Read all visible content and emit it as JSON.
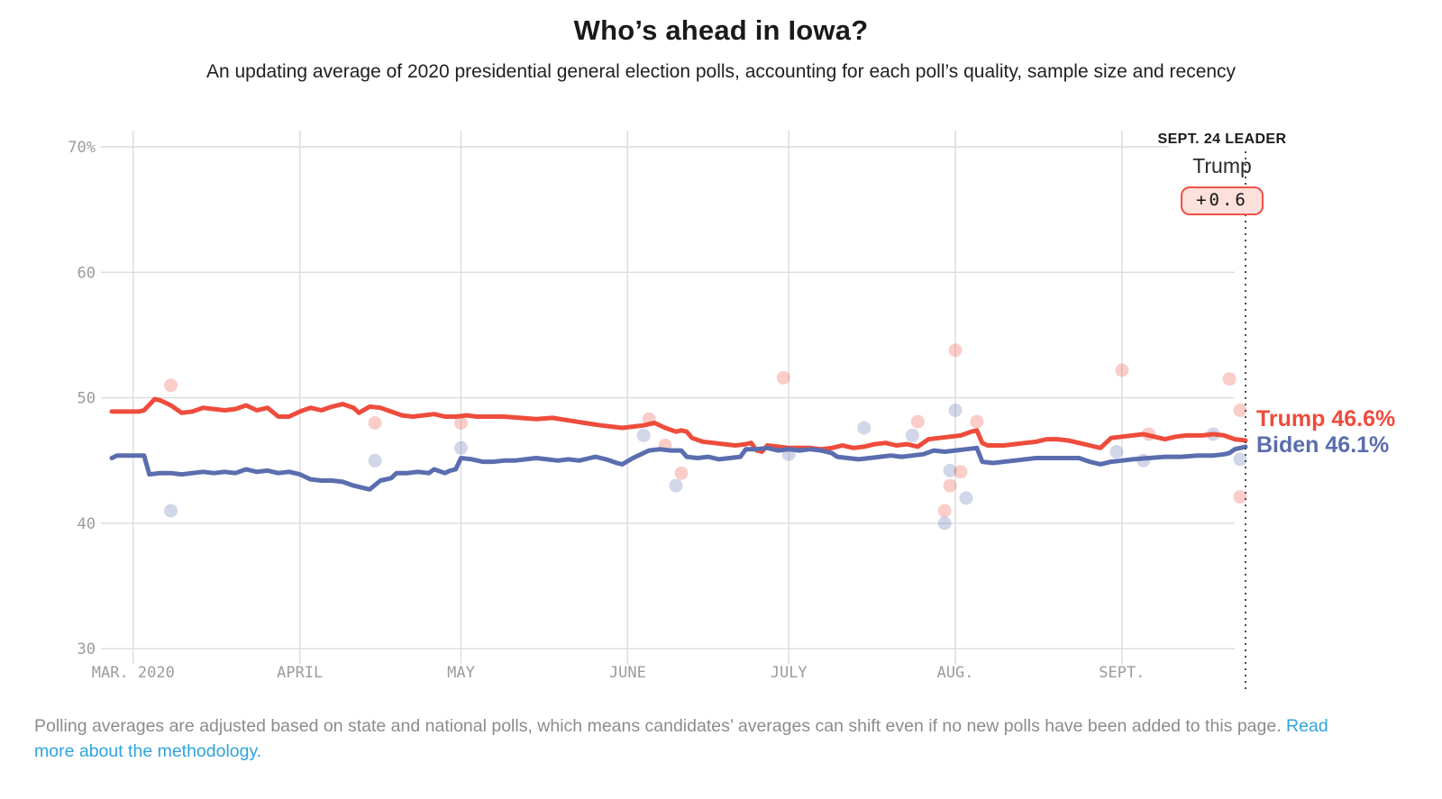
{
  "header": {
    "title": "Who’s ahead in Iowa?",
    "subtitle": "An updating average of 2020 presidential general election polls, accounting for each poll’s quality, sample size and recency"
  },
  "leader": {
    "heading": "SEPT. 24 LEADER",
    "name": "Trump",
    "margin": "+0.6"
  },
  "line_labels": {
    "trump": "Trump 46.6%",
    "biden": "Biden 46.1%"
  },
  "footer": {
    "text": "Polling averages are adjusted based on state and national polls, which means candidates’ averages can shift even if no new polls have been added to this page. ",
    "link": "Read more about the methodology."
  },
  "colors": {
    "trump": "#ee4c3c",
    "biden": "#5a6dae",
    "grid": "#dcdcdc",
    "axis_text": "#9b9b9b",
    "dotted_line": "#4a4a4a",
    "pill_bg": "#fbe0dc",
    "pill_border": "#ef5246",
    "link": "#2fa3dc",
    "footer_text": "#8c8c8c",
    "title_text": "#1a1a1a"
  },
  "chart_data": {
    "type": "line",
    "title": "Who’s ahead in Iowa?",
    "x_unit": "days since Feb 26, 2020",
    "x_range": [
      0,
      211
    ],
    "y_range": [
      28,
      71
    ],
    "grid": true,
    "legend_position": "end-of-line labels, right side",
    "end_marker_day": 211,
    "end_marker_date_label": "SEPT. 24",
    "y_ticks": [
      {
        "v": 70,
        "label": "70%"
      },
      {
        "v": 60,
        "label": "60"
      },
      {
        "v": 50,
        "label": "50"
      },
      {
        "v": 40,
        "label": "40"
      },
      {
        "v": 30,
        "label": "30"
      }
    ],
    "x_ticks": [
      {
        "d": 4,
        "label": "MAR. 2020"
      },
      {
        "d": 35,
        "label": "APRIL"
      },
      {
        "d": 65,
        "label": "MAY"
      },
      {
        "d": 96,
        "label": "JUNE"
      },
      {
        "d": 126,
        "label": "JULY"
      },
      {
        "d": 157,
        "label": "AUG."
      },
      {
        "d": 188,
        "label": "SEPT."
      }
    ],
    "series": [
      {
        "name": "Trump polling average",
        "color_key": "trump",
        "final_value": 46.6,
        "points": [
          [
            0,
            48.9
          ],
          [
            2,
            48.9
          ],
          [
            5,
            48.9
          ],
          [
            6,
            49.0
          ],
          [
            8,
            49.9
          ],
          [
            9,
            49.8
          ],
          [
            11,
            49.4
          ],
          [
            13,
            48.8
          ],
          [
            15,
            48.9
          ],
          [
            17,
            49.2
          ],
          [
            19,
            49.1
          ],
          [
            21,
            49.0
          ],
          [
            23,
            49.1
          ],
          [
            25,
            49.4
          ],
          [
            27,
            49.0
          ],
          [
            29,
            49.2
          ],
          [
            31,
            48.5
          ],
          [
            33,
            48.5
          ],
          [
            35,
            48.9
          ],
          [
            37,
            49.2
          ],
          [
            39,
            49.0
          ],
          [
            41,
            49.3
          ],
          [
            43,
            49.5
          ],
          [
            45,
            49.2
          ],
          [
            46,
            48.8
          ],
          [
            48,
            49.3
          ],
          [
            50,
            49.2
          ],
          [
            52,
            48.9
          ],
          [
            54,
            48.6
          ],
          [
            56,
            48.5
          ],
          [
            58,
            48.6
          ],
          [
            60,
            48.7
          ],
          [
            62,
            48.5
          ],
          [
            64,
            48.5
          ],
          [
            66,
            48.6
          ],
          [
            68,
            48.5
          ],
          [
            70,
            48.5
          ],
          [
            73,
            48.5
          ],
          [
            76,
            48.4
          ],
          [
            79,
            48.3
          ],
          [
            82,
            48.4
          ],
          [
            85,
            48.2
          ],
          [
            88,
            48.0
          ],
          [
            91,
            47.8
          ],
          [
            93,
            47.7
          ],
          [
            95,
            47.6
          ],
          [
            97,
            47.7
          ],
          [
            99,
            47.8
          ],
          [
            101,
            48.0
          ],
          [
            103,
            47.6
          ],
          [
            105,
            47.3
          ],
          [
            106,
            47.4
          ],
          [
            107,
            47.3
          ],
          [
            108,
            46.8
          ],
          [
            110,
            46.5
          ],
          [
            112,
            46.4
          ],
          [
            114,
            46.3
          ],
          [
            116,
            46.2
          ],
          [
            118,
            46.3
          ],
          [
            119,
            46.4
          ],
          [
            120,
            45.8
          ],
          [
            121,
            45.7
          ],
          [
            122,
            46.2
          ],
          [
            124,
            46.1
          ],
          [
            126,
            46.0
          ],
          [
            128,
            46.0
          ],
          [
            130,
            46.0
          ],
          [
            132,
            45.9
          ],
          [
            134,
            46.0
          ],
          [
            136,
            46.2
          ],
          [
            138,
            46.0
          ],
          [
            140,
            46.1
          ],
          [
            142,
            46.3
          ],
          [
            144,
            46.4
          ],
          [
            146,
            46.2
          ],
          [
            148,
            46.3
          ],
          [
            150,
            46.1
          ],
          [
            152,
            46.7
          ],
          [
            154,
            46.8
          ],
          [
            156,
            46.9
          ],
          [
            158,
            47.0
          ],
          [
            160,
            47.3
          ],
          [
            161,
            47.4
          ],
          [
            162,
            46.4
          ],
          [
            163,
            46.2
          ],
          [
            166,
            46.2
          ],
          [
            168,
            46.3
          ],
          [
            170,
            46.4
          ],
          [
            172,
            46.5
          ],
          [
            174,
            46.7
          ],
          [
            176,
            46.7
          ],
          [
            178,
            46.6
          ],
          [
            180,
            46.4
          ],
          [
            182,
            46.2
          ],
          [
            184,
            46.0
          ],
          [
            186,
            46.8
          ],
          [
            188,
            46.9
          ],
          [
            190,
            47.0
          ],
          [
            192,
            47.1
          ],
          [
            194,
            46.9
          ],
          [
            196,
            46.7
          ],
          [
            198,
            46.9
          ],
          [
            200,
            47.0
          ],
          [
            203,
            47.0
          ],
          [
            205,
            47.1
          ],
          [
            207,
            47.0
          ],
          [
            209,
            46.7
          ],
          [
            211,
            46.6
          ]
        ]
      },
      {
        "name": "Biden polling average",
        "color_key": "biden",
        "final_value": 46.1,
        "points": [
          [
            0,
            45.2
          ],
          [
            1,
            45.4
          ],
          [
            4,
            45.4
          ],
          [
            6,
            45.4
          ],
          [
            7,
            43.9
          ],
          [
            9,
            44.0
          ],
          [
            11,
            44.0
          ],
          [
            13,
            43.9
          ],
          [
            15,
            44.0
          ],
          [
            17,
            44.1
          ],
          [
            19,
            44.0
          ],
          [
            21,
            44.1
          ],
          [
            23,
            44.0
          ],
          [
            25,
            44.3
          ],
          [
            27,
            44.1
          ],
          [
            29,
            44.2
          ],
          [
            31,
            44.0
          ],
          [
            33,
            44.1
          ],
          [
            35,
            43.9
          ],
          [
            37,
            43.5
          ],
          [
            39,
            43.4
          ],
          [
            41,
            43.4
          ],
          [
            43,
            43.3
          ],
          [
            45,
            43.0
          ],
          [
            47,
            42.8
          ],
          [
            48,
            42.7
          ],
          [
            50,
            43.4
          ],
          [
            52,
            43.6
          ],
          [
            53,
            44.0
          ],
          [
            55,
            44.0
          ],
          [
            57,
            44.1
          ],
          [
            59,
            44.0
          ],
          [
            60,
            44.3
          ],
          [
            62,
            44.0
          ],
          [
            63,
            44.2
          ],
          [
            64,
            44.3
          ],
          [
            65,
            45.2
          ],
          [
            67,
            45.1
          ],
          [
            69,
            44.9
          ],
          [
            71,
            44.9
          ],
          [
            73,
            45.0
          ],
          [
            75,
            45.0
          ],
          [
            77,
            45.1
          ],
          [
            79,
            45.2
          ],
          [
            81,
            45.1
          ],
          [
            83,
            45.0
          ],
          [
            85,
            45.1
          ],
          [
            87,
            45.0
          ],
          [
            89,
            45.2
          ],
          [
            90,
            45.3
          ],
          [
            92,
            45.1
          ],
          [
            94,
            44.8
          ],
          [
            95,
            44.7
          ],
          [
            97,
            45.2
          ],
          [
            99,
            45.6
          ],
          [
            100,
            45.8
          ],
          [
            102,
            45.9
          ],
          [
            104,
            45.8
          ],
          [
            106,
            45.8
          ],
          [
            107,
            45.3
          ],
          [
            109,
            45.2
          ],
          [
            111,
            45.3
          ],
          [
            113,
            45.1
          ],
          [
            115,
            45.2
          ],
          [
            117,
            45.3
          ],
          [
            118,
            45.9
          ],
          [
            120,
            45.9
          ],
          [
            122,
            46.0
          ],
          [
            124,
            45.8
          ],
          [
            126,
            45.9
          ],
          [
            128,
            45.8
          ],
          [
            130,
            45.9
          ],
          [
            132,
            45.8
          ],
          [
            134,
            45.6
          ],
          [
            135,
            45.3
          ],
          [
            137,
            45.2
          ],
          [
            139,
            45.1
          ],
          [
            141,
            45.2
          ],
          [
            143,
            45.3
          ],
          [
            145,
            45.4
          ],
          [
            147,
            45.3
          ],
          [
            149,
            45.4
          ],
          [
            151,
            45.5
          ],
          [
            153,
            45.8
          ],
          [
            155,
            45.7
          ],
          [
            157,
            45.8
          ],
          [
            159,
            45.9
          ],
          [
            161,
            46.0
          ],
          [
            162,
            44.9
          ],
          [
            164,
            44.8
          ],
          [
            166,
            44.9
          ],
          [
            168,
            45.0
          ],
          [
            170,
            45.1
          ],
          [
            172,
            45.2
          ],
          [
            175,
            45.2
          ],
          [
            178,
            45.2
          ],
          [
            180,
            45.2
          ],
          [
            182,
            44.9
          ],
          [
            184,
            44.7
          ],
          [
            186,
            44.9
          ],
          [
            188,
            45.0
          ],
          [
            190,
            45.1
          ],
          [
            193,
            45.2
          ],
          [
            196,
            45.3
          ],
          [
            199,
            45.3
          ],
          [
            202,
            45.4
          ],
          [
            205,
            45.4
          ],
          [
            207,
            45.5
          ],
          [
            208,
            45.6
          ],
          [
            209,
            45.9
          ],
          [
            210,
            46.0
          ],
          [
            211,
            46.1
          ]
        ]
      }
    ],
    "polls": [
      {
        "party": "trump",
        "d": 11,
        "v": 51.0
      },
      {
        "party": "biden",
        "d": 11,
        "v": 41.0
      },
      {
        "party": "trump",
        "d": 49,
        "v": 48.0
      },
      {
        "party": "biden",
        "d": 49,
        "v": 45.0
      },
      {
        "party": "trump",
        "d": 65,
        "v": 48.0
      },
      {
        "party": "biden",
        "d": 65,
        "v": 46.0
      },
      {
        "party": "biden",
        "d": 99,
        "v": 47.0
      },
      {
        "party": "trump",
        "d": 100,
        "v": 48.3
      },
      {
        "party": "trump",
        "d": 103,
        "v": 46.2
      },
      {
        "party": "trump",
        "d": 106,
        "v": 44.0
      },
      {
        "party": "biden",
        "d": 105,
        "v": 43.0
      },
      {
        "party": "trump",
        "d": 125,
        "v": 51.6
      },
      {
        "party": "biden",
        "d": 126,
        "v": 45.5
      },
      {
        "party": "biden",
        "d": 140,
        "v": 47.6
      },
      {
        "party": "biden",
        "d": 149,
        "v": 47.0
      },
      {
        "party": "trump",
        "d": 150,
        "v": 48.1
      },
      {
        "party": "trump",
        "d": 155,
        "v": 41.0
      },
      {
        "party": "biden",
        "d": 155,
        "v": 40.0
      },
      {
        "party": "trump",
        "d": 156,
        "v": 43.0
      },
      {
        "party": "biden",
        "d": 156,
        "v": 44.2
      },
      {
        "party": "trump",
        "d": 157,
        "v": 53.8
      },
      {
        "party": "biden",
        "d": 157,
        "v": 49.0
      },
      {
        "party": "trump",
        "d": 158,
        "v": 44.1
      },
      {
        "party": "biden",
        "d": 159,
        "v": 42.0
      },
      {
        "party": "trump",
        "d": 161,
        "v": 48.1
      },
      {
        "party": "biden",
        "d": 187,
        "v": 45.7
      },
      {
        "party": "trump",
        "d": 188,
        "v": 52.2
      },
      {
        "party": "biden",
        "d": 192,
        "v": 45.0
      },
      {
        "party": "trump",
        "d": 193,
        "v": 47.1
      },
      {
        "party": "biden",
        "d": 205,
        "v": 47.1
      },
      {
        "party": "trump",
        "d": 208,
        "v": 51.5
      },
      {
        "party": "trump",
        "d": 210,
        "v": 49.0
      },
      {
        "party": "biden",
        "d": 210,
        "v": 45.1
      },
      {
        "party": "trump",
        "d": 210,
        "v": 42.1
      }
    ]
  }
}
